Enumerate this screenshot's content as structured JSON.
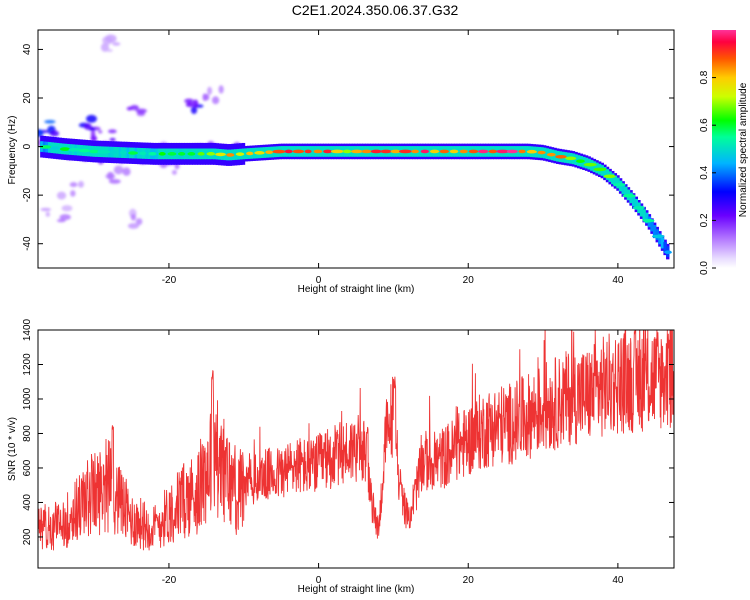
{
  "title": "C2E1.2024.350.06.37.G32",
  "chart_data": [
    {
      "type": "heatmap",
      "xlabel": "Height of straight line (km)",
      "ylabel": "Frequency (Hz)",
      "xlim": [
        -37.5,
        47.5
      ],
      "ylim": [
        -50,
        48
      ],
      "xticks": [
        "-20",
        "0",
        "20",
        "40"
      ],
      "yticks": [
        "-40",
        "-20",
        "0",
        "20",
        "40"
      ],
      "colorbar_label": "Normalized spectral amplitude",
      "colorbar_range": [
        0,
        1
      ],
      "colorbar_ticks": [
        "0.0",
        "0.2",
        "0.4",
        "0.6",
        "0.8"
      ],
      "colormap": [
        "#ffffff",
        "#c9a8ff",
        "#7b00ff",
        "#0000ff",
        "#00ccff",
        "#00ff66",
        "#ccff00",
        "#ff8800",
        "#ff0033",
        "#ff33aa"
      ],
      "ridge": {
        "x": [
          -37,
          -34,
          -30,
          -26,
          -22,
          -18,
          -14,
          -12,
          -10,
          -5,
          0,
          5,
          10,
          15,
          20,
          25,
          28,
          30,
          32,
          34,
          36,
          38,
          40,
          42,
          44,
          46,
          47
        ],
        "y": [
          0,
          -1,
          -2,
          -2.5,
          -3,
          -3,
          -3,
          -3.5,
          -3,
          -2,
          -2,
          -2,
          -2,
          -2,
          -2,
          -2,
          -2,
          -2.5,
          -4,
          -5,
          -7,
          -10,
          -15,
          -22,
          -30,
          -40,
          -45
        ],
        "amplitude": [
          0.5,
          0.55,
          0.6,
          0.55,
          0.55,
          0.6,
          0.65,
          0.8,
          0.85,
          0.85,
          0.85,
          0.8,
          0.85,
          0.85,
          0.9,
          0.9,
          0.9,
          0.75,
          0.8,
          0.75,
          0.7,
          0.65,
          0.6,
          0.55,
          0.5,
          0.45,
          0.45
        ]
      },
      "scatter_blobs": [
        {
          "x": -36,
          "y": 8,
          "a": 0.35
        },
        {
          "x": -31,
          "y": 10,
          "a": 0.3
        },
        {
          "x": -24,
          "y": 14,
          "a": 0.2
        },
        {
          "x": -17,
          "y": 18,
          "a": 0.3
        },
        {
          "x": -27,
          "y": -12,
          "a": 0.15
        },
        {
          "x": -33,
          "y": -18,
          "a": 0.12
        },
        {
          "x": -25,
          "y": -30,
          "a": 0.12
        },
        {
          "x": -14,
          "y": 22,
          "a": 0.15
        },
        {
          "x": -29,
          "y": 5,
          "a": 0.25
        },
        {
          "x": -20,
          "y": -8,
          "a": 0.15
        },
        {
          "x": -35,
          "y": -28,
          "a": 0.12
        },
        {
          "x": -28,
          "y": 42,
          "a": 0.1
        }
      ]
    },
    {
      "type": "line",
      "xlabel": "Height of straight line (km)",
      "ylabel": "SNR (10 * v/v)",
      "xlim": [
        -37.5,
        47.5
      ],
      "ylim": [
        20,
        1400
      ],
      "xticks": [
        "-20",
        "0",
        "20",
        "40"
      ],
      "yticks": [
        "200",
        "400",
        "600",
        "800",
        "1000",
        "1200",
        "1400"
      ],
      "color": "#ee3333",
      "x": [
        -37,
        -34,
        -31,
        -28,
        -25,
        -22,
        -19,
        -16,
        -14,
        -13,
        -11,
        -9,
        -7,
        -5,
        -3,
        -1,
        1,
        3,
        5,
        6,
        7,
        8,
        9,
        10,
        11,
        12,
        14,
        16,
        18,
        20,
        22,
        24,
        26,
        28,
        30,
        32,
        34,
        36,
        38,
        40,
        42,
        44,
        46,
        47
      ],
      "y": [
        250,
        280,
        420,
        500,
        300,
        250,
        380,
        470,
        720,
        600,
        450,
        520,
        560,
        570,
        620,
        600,
        650,
        680,
        720,
        700,
        420,
        230,
        780,
        920,
        450,
        300,
        640,
        640,
        700,
        760,
        820,
        850,
        860,
        900,
        950,
        980,
        1020,
        1020,
        1070,
        1100,
        1110,
        1120,
        1130,
        1140
      ],
      "spikes": [
        {
          "x": -14.2,
          "y": 1200
        },
        {
          "x": 10.2,
          "y": 1150
        },
        {
          "x": -27.5,
          "y": 880
        },
        {
          "x": 46.8,
          "y": 1380
        },
        {
          "x": 6.5,
          "y": 870
        }
      ]
    }
  ]
}
